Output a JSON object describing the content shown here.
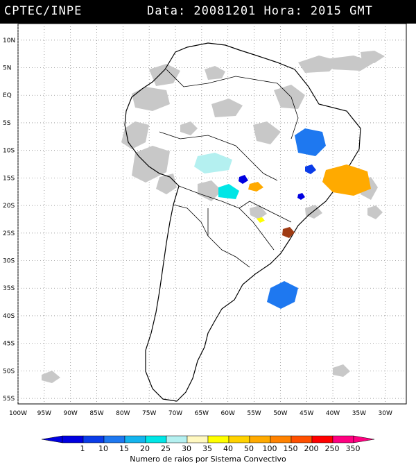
{
  "header": {
    "left": "CPTEC/INPE",
    "right": "Data: 20081201 Hora: 2015 GMT"
  },
  "map": {
    "lat_labels": [
      "10N",
      "5N",
      "EQ",
      "5S",
      "10S",
      "15S",
      "20S",
      "25S",
      "30S",
      "35S",
      "40S",
      "45S",
      "50S",
      "55S"
    ],
    "lon_labels": [
      "100W",
      "95W",
      "90W",
      "85W",
      "80W",
      "75W",
      "70W",
      "65W",
      "60W",
      "55W",
      "50W",
      "45W",
      "40W",
      "35W",
      "30W"
    ],
    "lat_range": [
      -56,
      13
    ],
    "lon_range": [
      -100,
      -26
    ],
    "grid": "dotted"
  },
  "colorbar": {
    "labels": [
      "1",
      "10",
      "15",
      "20",
      "25",
      "30",
      "35",
      "40",
      "50",
      "100",
      "150",
      "200",
      "250",
      "350"
    ],
    "colors": [
      "#0000e0",
      "#0a3ce8",
      "#1e78f0",
      "#14b4ee",
      "#00e6e6",
      "#b4f0f0",
      "#fff8c0",
      "#ffff00",
      "#ffd200",
      "#ffaa00",
      "#ff8200",
      "#ff5000",
      "#ff0000",
      "#ff0080"
    ],
    "caption": "Numero de raios por Sistema Convectivo"
  },
  "systems": [
    {
      "name": "nordeste-blue",
      "color": "#1e78f0"
    },
    {
      "name": "bahia-orange",
      "color": "#ffaa00"
    },
    {
      "name": "mato-grosso-lightcyan",
      "color": "#b4f0f0"
    },
    {
      "name": "pantanal-cyan",
      "color": "#00e6e6"
    },
    {
      "name": "uruguay-offshore-blue",
      "color": "#1e78f0"
    },
    {
      "name": "parana-brown",
      "color": "#a03c14"
    },
    {
      "name": "goias-orange",
      "color": "#ffaa00"
    }
  ]
}
